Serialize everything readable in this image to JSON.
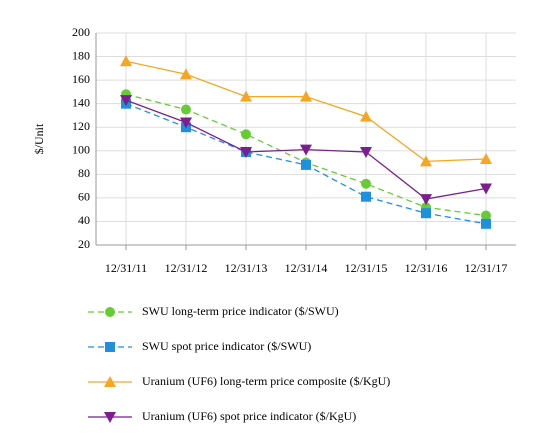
{
  "chart_data": {
    "type": "line",
    "y_label": "$/Unit",
    "categories": [
      "12/31/11",
      "12/31/12",
      "12/31/13",
      "12/31/14",
      "12/31/15",
      "12/31/16",
      "12/31/17"
    ],
    "series": [
      {
        "name": "SWU long-term price indicator ($/SWU)",
        "color": "#66cc33",
        "marker": "circle",
        "dashed": true,
        "values": [
          148,
          135,
          114,
          90,
          72,
          52,
          45
        ]
      },
      {
        "name": "SWU spot price indicator ($/SWU)",
        "color": "#1f8fe0",
        "marker": "square",
        "dashed": true,
        "values": [
          140,
          120,
          99,
          88,
          61,
          47,
          38
        ]
      },
      {
        "name": "Uranium (UF6) long-term price composite ($/KgU)",
        "color": "#f5a623",
        "marker": "triangle-up",
        "dashed": false,
        "values": [
          176,
          165,
          146,
          146,
          129,
          91,
          93
        ]
      },
      {
        "name": "Uranium (UF6) spot price indicator ($/KgU)",
        "color": "#7b1f8f",
        "marker": "triangle-down",
        "dashed": false,
        "values": [
          143,
          124,
          99,
          101,
          99,
          59,
          68
        ]
      }
    ],
    "ylim": [
      20,
      200
    ],
    "yticks": [
      20,
      40,
      60,
      80,
      100,
      120,
      140,
      160,
      180,
      200
    ],
    "grid": true
  }
}
